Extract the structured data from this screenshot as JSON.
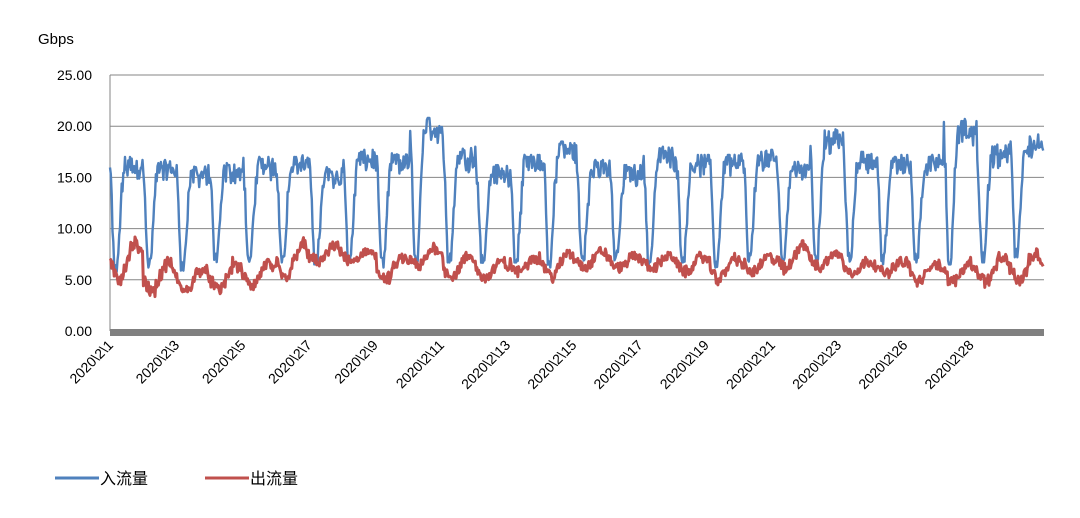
{
  "chart_data": {
    "type": "line",
    "ylabel": "Gbps",
    "ylim": [
      0,
      25
    ],
    "y_ticks": [
      "0.00",
      "5.00",
      "10.00",
      "15.00",
      "20.00",
      "25.00"
    ],
    "x_ticks": [
      "2020\\2\\1",
      "2020\\2\\3",
      "2020\\2\\5",
      "2020\\2\\7",
      "2020\\2\\9",
      "2020\\2\\11",
      "2020\\2\\13",
      "2020\\2\\15",
      "2020\\2\\17",
      "2020\\2\\19",
      "2020\\2\\21",
      "2020\\2\\23",
      "2020\\2\\26",
      "2020\\2\\28"
    ],
    "grid": true,
    "legend_position": "bottom-left",
    "days": 28,
    "series": [
      {
        "name": "入流量",
        "color": "#4F81BD",
        "description": "daily cycle",
        "daily_min": [
          6.0,
          6.5,
          6.2,
          7.0,
          6.8,
          7.0,
          6.8,
          7.0,
          6.5,
          6.8,
          7.0,
          6.8,
          7.0,
          6.5,
          7.0,
          7.2,
          6.8,
          7.0,
          6.5,
          7.0,
          7.2,
          7.0,
          7.0,
          6.8,
          7.0,
          6.8,
          7.0,
          7.5
        ],
        "daily_max": [
          16.8,
          16.5,
          16.0,
          16.2,
          16.8,
          17.0,
          15.8,
          17.5,
          17.2,
          20.8,
          17.8,
          16.0,
          17.0,
          18.5,
          16.5,
          16.0,
          17.8,
          17.0,
          17.2,
          17.5,
          16.5,
          19.5,
          17.5,
          17.0,
          17.0,
          20.5,
          18.0,
          19.0
        ]
      },
      {
        "name": "出流量",
        "color": "#C0504D",
        "daily_min": [
          4.5,
          3.5,
          3.5,
          3.5,
          4.0,
          4.5,
          6.5,
          6.5,
          4.5,
          6.0,
          5.0,
          5.0,
          5.5,
          5.0,
          6.0,
          6.0,
          6.0,
          5.5,
          4.8,
          5.5,
          5.5,
          6.0,
          5.5,
          5.5,
          4.5,
          4.5,
          4.5,
          4.5
        ],
        "daily_max": [
          9.0,
          7.0,
          6.5,
          7.0,
          7.0,
          9.0,
          8.5,
          8.0,
          7.5,
          8.5,
          7.5,
          7.0,
          7.5,
          8.0,
          8.0,
          7.5,
          7.5,
          7.5,
          7.5,
          7.5,
          9.0,
          7.8,
          7.0,
          7.0,
          7.0,
          7.0,
          7.5,
          8.0
        ]
      }
    ]
  }
}
